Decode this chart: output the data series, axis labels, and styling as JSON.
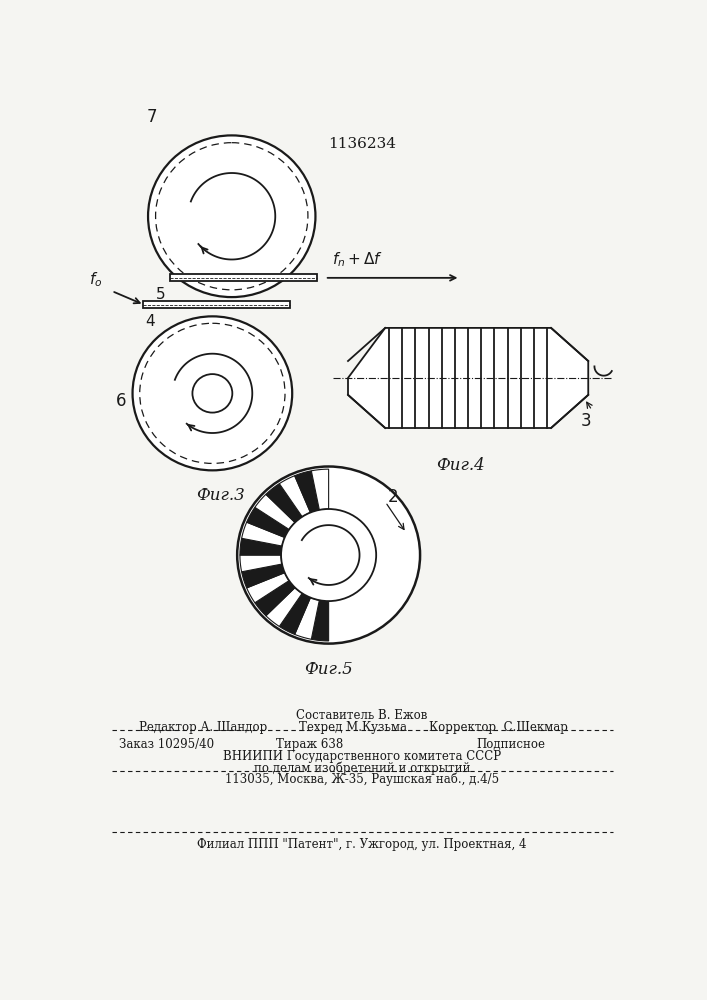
{
  "title": "1136234",
  "bg_color": "#f5f5f2",
  "line_color": "#1a1a1a",
  "fig3_label": "Фиг.3",
  "fig4_label": "Фиг.4",
  "fig5_label": "Фиг.5",
  "label_7": "7",
  "label_5": "5",
  "label_4": "4",
  "label_6": "6",
  "label_3": "3",
  "label_2": "2",
  "label_fo": "$f_o$",
  "label_fndf": "$f_n+\\Delta f$",
  "footer_row1_center": "Составитель В. Ежов",
  "footer_row2_left": "Редактор А. Шандор",
  "footer_row2_center": "Техред М.Кузьма",
  "footer_row2_right": "Корректор  С.Шекмар",
  "footer_row3_left": "Заказ 10295/40",
  "footer_row3_center": "Тираж 638",
  "footer_row3_right": "Подписное",
  "footer_row4": "ВНИИПИ Государственного комитета СССР",
  "footer_row5": "по делам изобретений и открытий",
  "footer_row6": "113035, Москва, Ж-35, Раушская наб., д.4/5",
  "footer_row7": "Филиал ППП \"Патент\", г. Ужгород, ул. Проектная, 4"
}
